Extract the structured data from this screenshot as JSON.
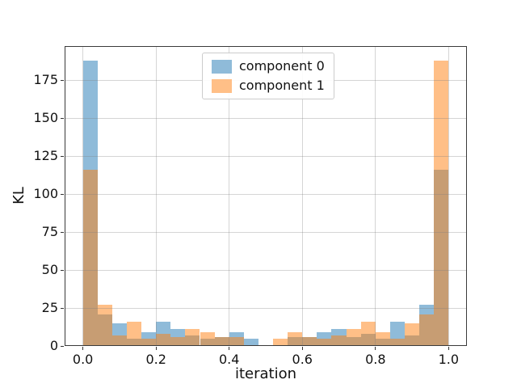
{
  "figure": {
    "background": "#ffffff"
  },
  "chart_data": {
    "type": "histogram",
    "title": "",
    "xlabel": "iteration",
    "ylabel": "KL",
    "grid": true,
    "legend_position": "upper center",
    "bin_start": 0.0,
    "bin_width": 0.04,
    "n_bins": 25,
    "xlim": [
      -0.05,
      1.05
    ],
    "ylim": [
      0,
      197.4
    ],
    "x_ticks": [
      0.0,
      0.2,
      0.4,
      0.6,
      0.8,
      1.0
    ],
    "x_tick_labels": [
      "0.0",
      "0.2",
      "0.4",
      "0.6",
      "0.8",
      "1.0"
    ],
    "y_ticks": [
      0,
      25,
      50,
      75,
      100,
      125,
      150,
      175
    ],
    "y_tick_labels": [
      "0",
      "25",
      "50",
      "75",
      "100",
      "125",
      "150",
      "175"
    ],
    "series": [
      {
        "name": "component 0",
        "color": "#8fbbd9",
        "values": [
          188,
          21,
          15,
          5,
          9,
          16,
          11,
          7,
          5,
          6,
          9,
          5,
          0,
          0,
          6,
          6,
          9,
          11,
          6,
          8,
          5,
          16,
          7,
          27,
          116
        ]
      },
      {
        "name": "component 1",
        "color": "#ffbf87",
        "values": [
          116,
          27,
          7,
          16,
          5,
          8,
          6,
          11,
          9,
          6,
          6,
          0,
          0,
          5,
          9,
          6,
          5,
          7,
          11,
          16,
          9,
          5,
          15,
          21,
          188
        ]
      }
    ],
    "overlap_color": "#c79d73",
    "note": "bars drawn with alpha 0.5; overlap renders brown"
  }
}
